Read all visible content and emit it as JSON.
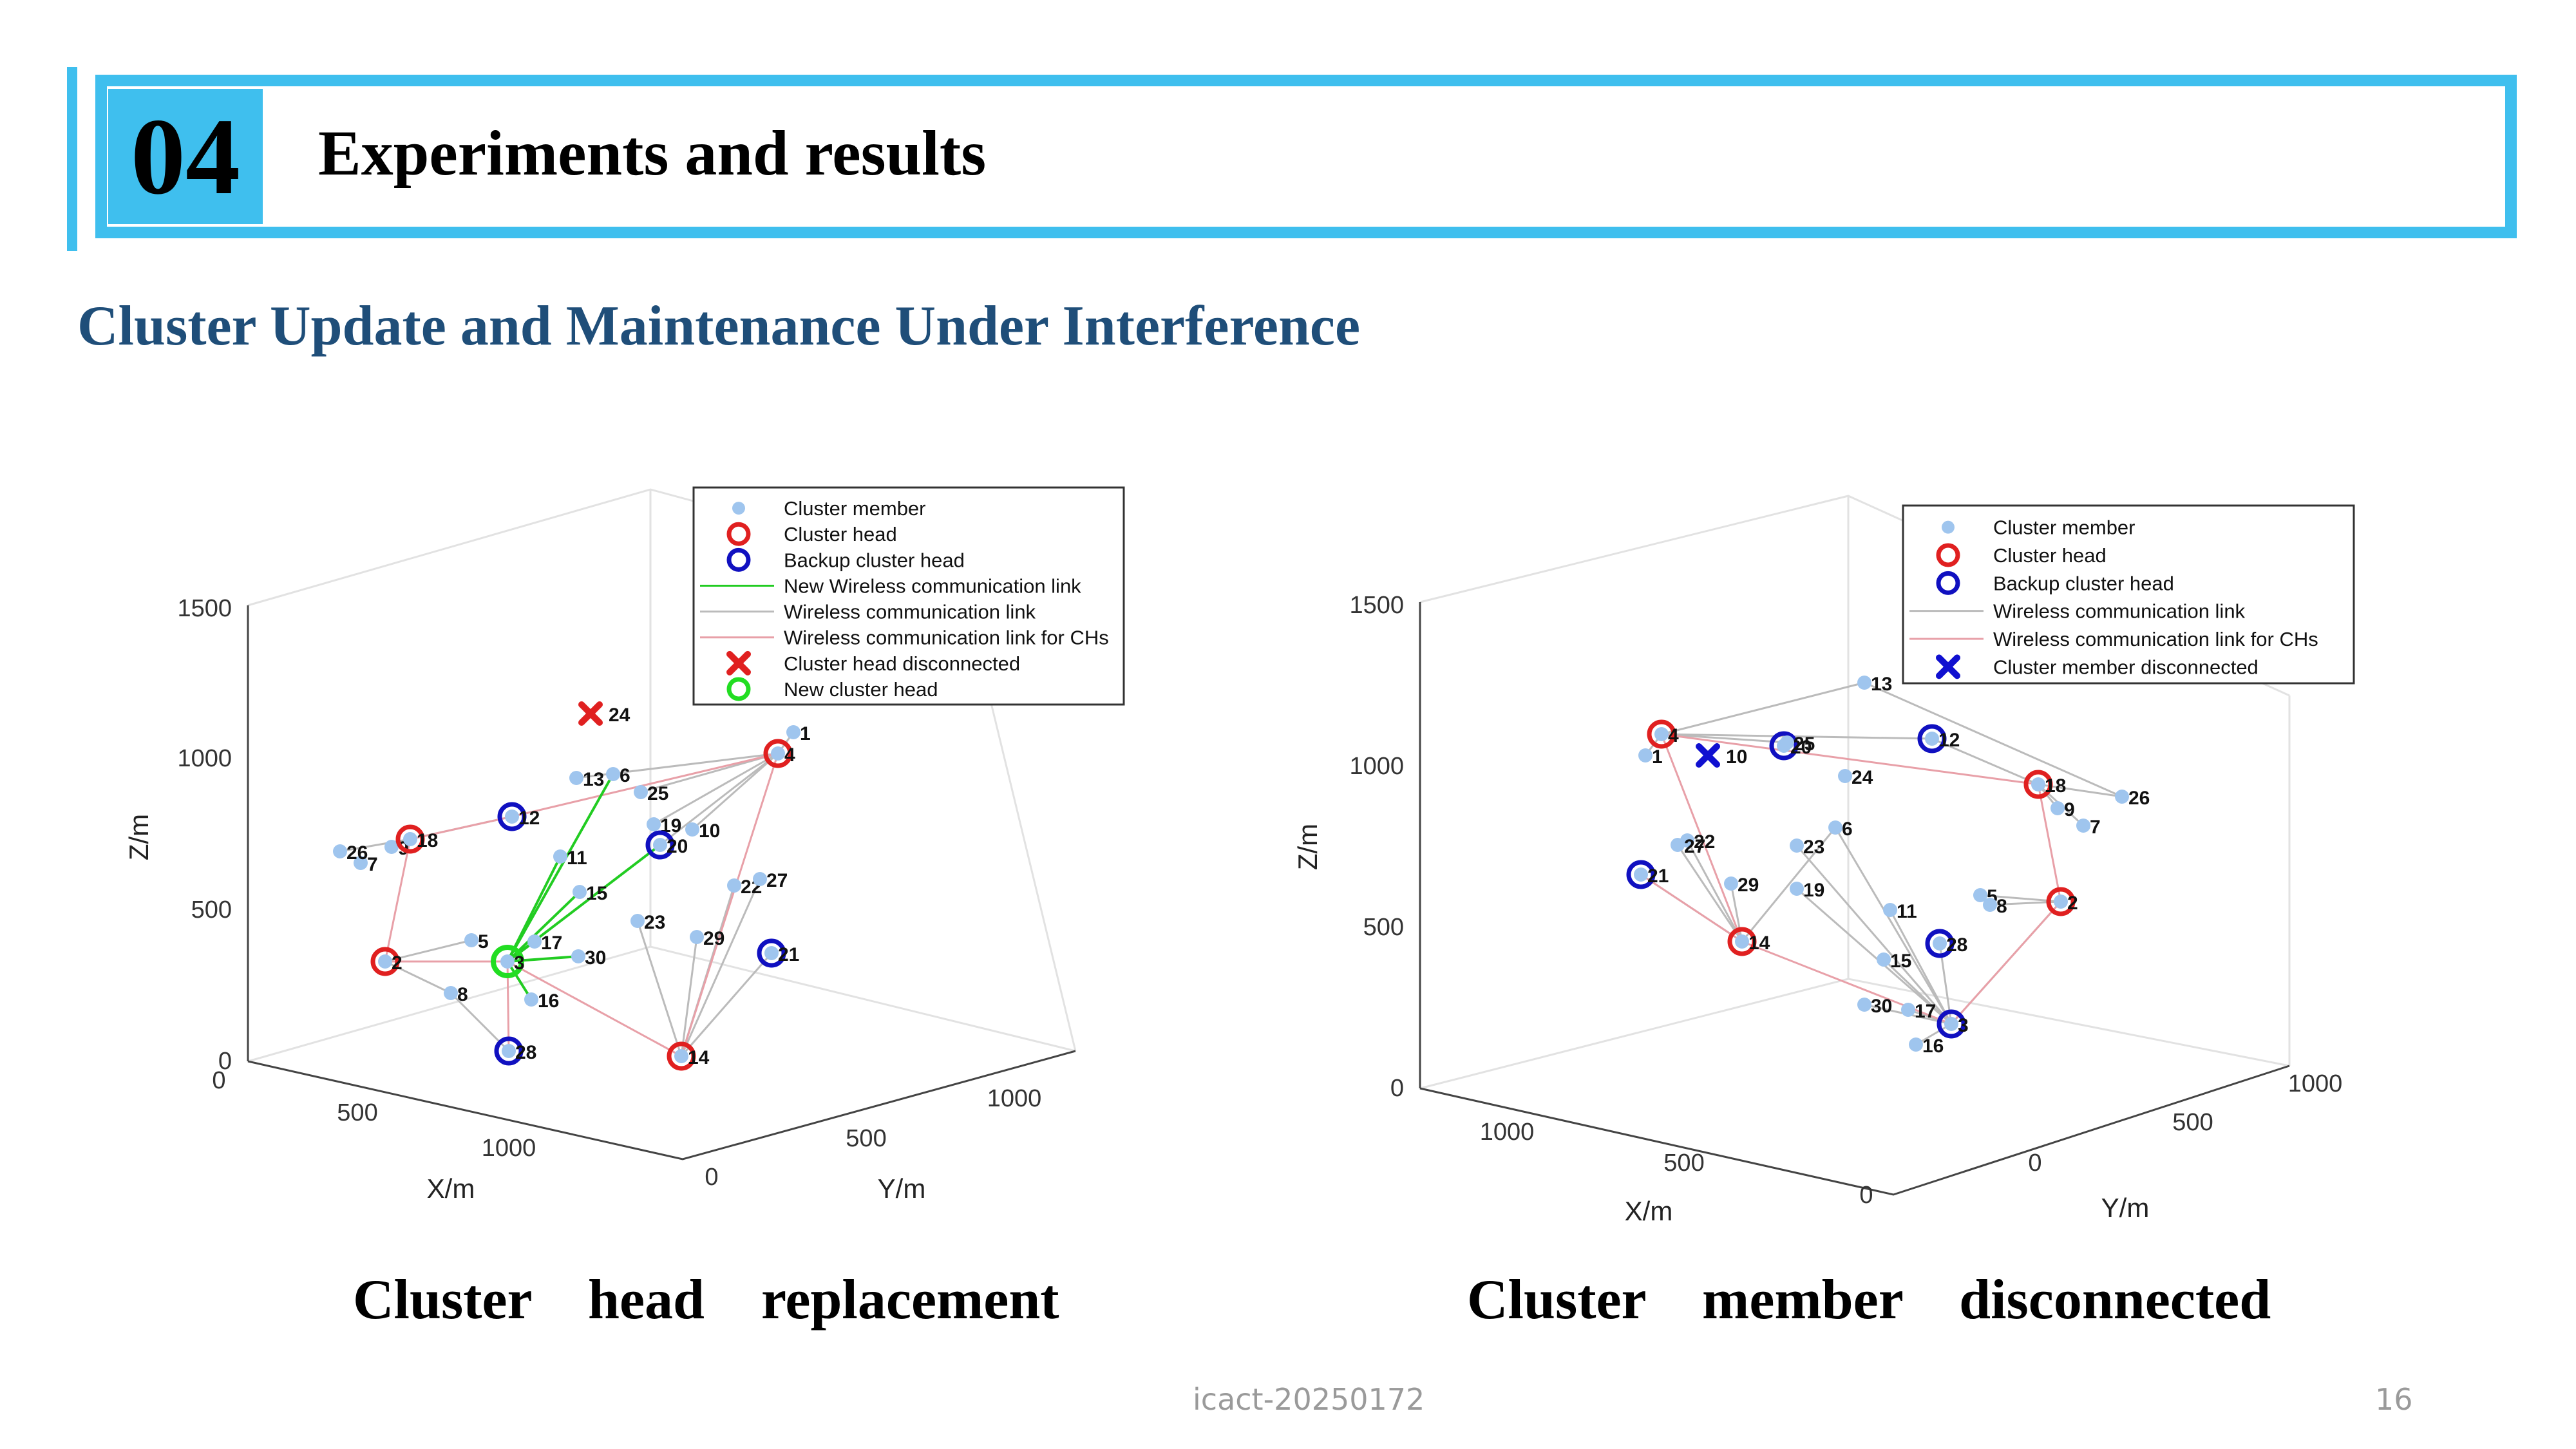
{
  "slide": {
    "section_number": "04",
    "title": "Experiments and results",
    "subtitle": "Cluster Update and Maintenance Under Interference",
    "footer_center": "icact-20250172",
    "page_number": "16"
  },
  "figures": [
    {
      "caption": "Cluster    head    replacement",
      "x_label": "X/m",
      "y_label": "Y/m",
      "z_label": "Z/m",
      "z_ticks": [
        "1500",
        "1000",
        "500",
        "0"
      ],
      "x_ticks": [
        "0",
        "500",
        "1000"
      ],
      "y_ticks": [
        "0",
        "500",
        "1000"
      ],
      "legend": [
        {
          "label": "Cluster member",
          "symbol": "dot",
          "color": "#9fc5ee"
        },
        {
          "label": "Cluster head",
          "symbol": "ring",
          "color": "#e02020"
        },
        {
          "label": "Backup cluster head",
          "symbol": "ring",
          "color": "#1010c0"
        },
        {
          "label": "New Wireless communication link",
          "symbol": "line",
          "color": "#22cc22"
        },
        {
          "label": "Wireless communication link",
          "symbol": "line",
          "color": "#bbbbbb"
        },
        {
          "label": "Wireless communication link for CHs",
          "symbol": "line",
          "color": "#e8a0a8"
        },
        {
          "label": "Cluster head disconnected",
          "symbol": "cross",
          "color": "#e02020"
        },
        {
          "label": "New cluster head",
          "symbol": "ring",
          "color": "#22dd22"
        }
      ],
      "nodes": [
        {
          "id": "1",
          "role": "member"
        },
        {
          "id": "2",
          "role": "head"
        },
        {
          "id": "3",
          "role": "new_head"
        },
        {
          "id": "4",
          "role": "head"
        },
        {
          "id": "5",
          "role": "member"
        },
        {
          "id": "6",
          "role": "member"
        },
        {
          "id": "7",
          "role": "member"
        },
        {
          "id": "8",
          "role": "member"
        },
        {
          "id": "9",
          "role": "member"
        },
        {
          "id": "10",
          "role": "member"
        },
        {
          "id": "11",
          "role": "member"
        },
        {
          "id": "12",
          "role": "backup"
        },
        {
          "id": "13",
          "role": "member"
        },
        {
          "id": "14",
          "role": "head"
        },
        {
          "id": "15",
          "role": "member"
        },
        {
          "id": "16",
          "role": "member"
        },
        {
          "id": "17",
          "role": "member"
        },
        {
          "id": "18",
          "role": "head"
        },
        {
          "id": "19",
          "role": "member"
        },
        {
          "id": "20",
          "role": "backup"
        },
        {
          "id": "21",
          "role": "backup"
        },
        {
          "id": "22",
          "role": "member"
        },
        {
          "id": "23",
          "role": "member"
        },
        {
          "id": "24",
          "role": "disconnected_head"
        },
        {
          "id": "25",
          "role": "member"
        },
        {
          "id": "26",
          "role": "member"
        },
        {
          "id": "27",
          "role": "member"
        },
        {
          "id": "28",
          "role": "backup"
        },
        {
          "id": "29",
          "role": "member"
        },
        {
          "id": "30",
          "role": "member"
        }
      ]
    },
    {
      "caption": "Cluster    member    disconnected",
      "x_label": "X/m",
      "y_label": "Y/m",
      "z_label": "Z/m",
      "z_ticks": [
        "1500",
        "1000",
        "500",
        "0"
      ],
      "x_ticks": [
        "1000",
        "500",
        "0"
      ],
      "y_ticks": [
        "0",
        "500",
        "1000"
      ],
      "legend": [
        {
          "label": "Cluster member",
          "symbol": "dot",
          "color": "#9fc5ee"
        },
        {
          "label": "Cluster head",
          "symbol": "ring",
          "color": "#e02020"
        },
        {
          "label": "Backup cluster head",
          "symbol": "ring",
          "color": "#1010c0"
        },
        {
          "label": "Wireless communication link",
          "symbol": "line",
          "color": "#bbbbbb"
        },
        {
          "label": "Wireless communication link for CHs",
          "symbol": "line",
          "color": "#e8a0a8"
        },
        {
          "label": "Cluster member disconnected",
          "symbol": "cross",
          "color": "#1010d0"
        }
      ],
      "nodes": [
        {
          "id": "1",
          "role": "member"
        },
        {
          "id": "2",
          "role": "head"
        },
        {
          "id": "3",
          "role": "backup"
        },
        {
          "id": "4",
          "role": "head"
        },
        {
          "id": "5",
          "role": "member"
        },
        {
          "id": "6",
          "role": "member"
        },
        {
          "id": "7",
          "role": "member"
        },
        {
          "id": "8",
          "role": "member"
        },
        {
          "id": "9",
          "role": "member"
        },
        {
          "id": "10",
          "role": "disconnected_member"
        },
        {
          "id": "11",
          "role": "member"
        },
        {
          "id": "12",
          "role": "backup"
        },
        {
          "id": "13",
          "role": "member"
        },
        {
          "id": "14",
          "role": "head"
        },
        {
          "id": "15",
          "role": "member"
        },
        {
          "id": "16",
          "role": "member"
        },
        {
          "id": "17",
          "role": "member"
        },
        {
          "id": "18",
          "role": "head"
        },
        {
          "id": "19",
          "role": "member"
        },
        {
          "id": "20",
          "role": "backup"
        },
        {
          "id": "21",
          "role": "backup"
        },
        {
          "id": "22",
          "role": "member"
        },
        {
          "id": "23",
          "role": "member"
        },
        {
          "id": "24",
          "role": "member"
        },
        {
          "id": "25",
          "role": "member"
        },
        {
          "id": "26",
          "role": "member"
        },
        {
          "id": "27",
          "role": "member"
        },
        {
          "id": "28",
          "role": "backup"
        },
        {
          "id": "29",
          "role": "member"
        },
        {
          "id": "30",
          "role": "member"
        }
      ]
    }
  ]
}
